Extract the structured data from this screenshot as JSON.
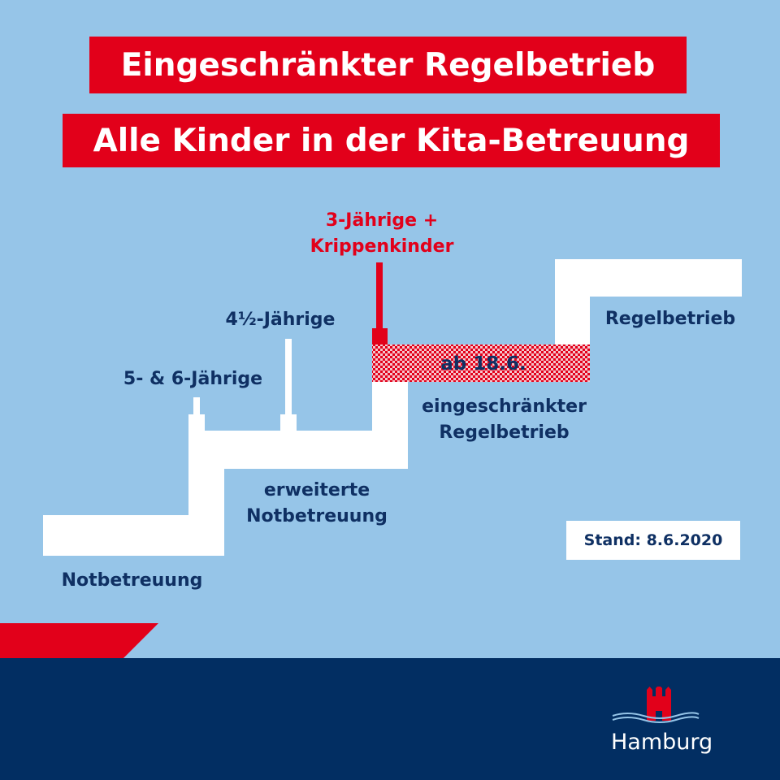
{
  "titles": {
    "line1": "Eingeschränkter Regelbetrieb",
    "line2": "Alle Kinder in der Kita-Betreuung"
  },
  "stages": {
    "notbetreuung": "Notbetreuung",
    "erweiterte_line1": "erweiterte",
    "erweiterte_line2": "Notbetreuung",
    "eingeschraenkter_line1": "eingeschränkter",
    "eingeschraenkter_line2": "Regelbetrieb",
    "regelbetrieb": "Regelbetrieb"
  },
  "groups": {
    "five_six": "5- & 6-Jährige",
    "four_half": "4½-Jährige",
    "three_line1": "3-Jährige +",
    "three_line2": "Krippenkinder"
  },
  "date_label": "ab 18.6.",
  "stand": "Stand: 8.6.2020",
  "logo": {
    "text": "Hamburg"
  },
  "colors": {
    "background": "#96c5e8",
    "red": "#e2001a",
    "navy": "#022e62",
    "text_navy": "#0f3063",
    "white": "#ffffff"
  }
}
